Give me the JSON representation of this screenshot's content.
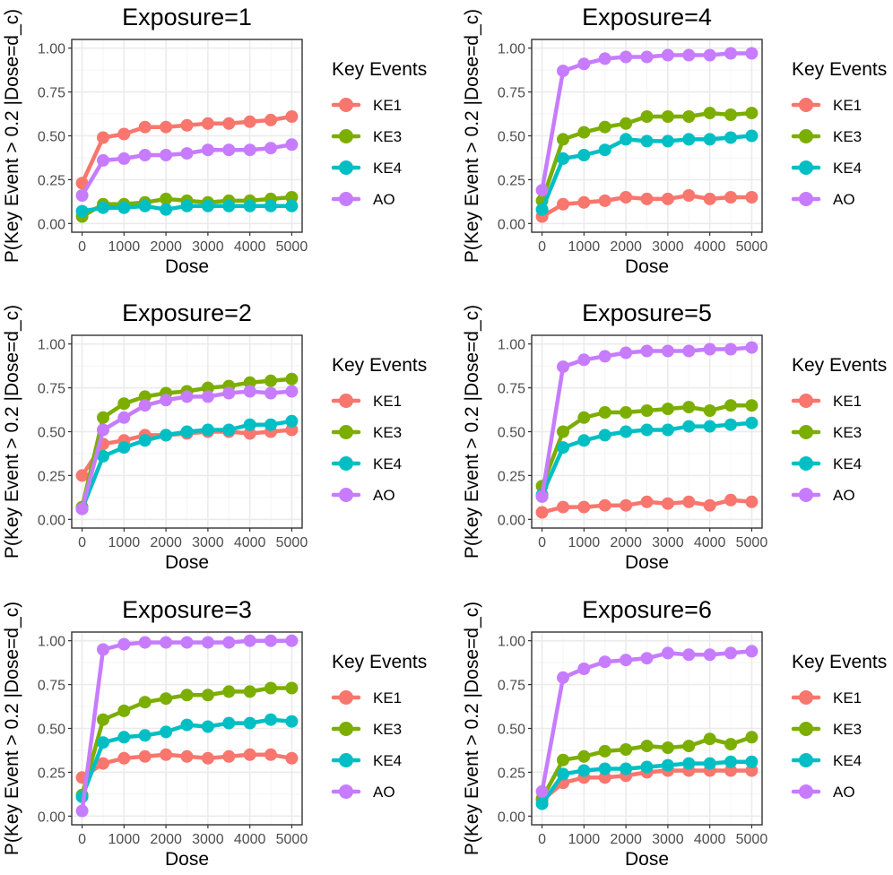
{
  "figure": {
    "ylabel": "P(Key Event > 0.2 |Dose=d_c)",
    "xlabel": "Dose",
    "legend_title": "Key Events",
    "legend_entries": [
      "KE1",
      "KE3",
      "KE4",
      "AO"
    ],
    "x_ticks": [
      "0",
      "1000",
      "2000",
      "3000",
      "4000",
      "5000"
    ],
    "y_ticks": [
      "0.00",
      "0.25",
      "0.50",
      "0.75",
      "1.00"
    ]
  },
  "colors": {
    "KE1": "#F8766D",
    "KE3": "#7CAE00",
    "KE4": "#00BFC4",
    "AO": "#C77CFF",
    "panel_bg": "#FFFFFF",
    "grid_major": "#EBEBEB",
    "grid_minor": "#F5F5F5",
    "border": "#333333"
  },
  "chart_data": [
    {
      "type": "line",
      "title": "Exposure=1",
      "xlabel": "Dose",
      "ylabel": "P(Key Event > 0.2 |Dose=d_c)",
      "xlim": [
        0,
        5000
      ],
      "ylim": [
        0,
        1
      ],
      "x": [
        0,
        500,
        1000,
        1500,
        2000,
        2500,
        3000,
        3500,
        4000,
        4500,
        5000
      ],
      "series": [
        {
          "name": "KE1",
          "values": [
            0.23,
            0.49,
            0.51,
            0.55,
            0.55,
            0.56,
            0.57,
            0.57,
            0.58,
            0.59,
            0.61
          ]
        },
        {
          "name": "KE3",
          "values": [
            0.04,
            0.11,
            0.11,
            0.12,
            0.14,
            0.13,
            0.12,
            0.13,
            0.13,
            0.14,
            0.15
          ]
        },
        {
          "name": "KE4",
          "values": [
            0.07,
            0.09,
            0.09,
            0.1,
            0.08,
            0.1,
            0.1,
            0.1,
            0.1,
            0.1,
            0.1
          ]
        },
        {
          "name": "AO",
          "values": [
            0.16,
            0.36,
            0.37,
            0.39,
            0.39,
            0.4,
            0.42,
            0.42,
            0.42,
            0.43,
            0.45
          ]
        }
      ]
    },
    {
      "type": "line",
      "title": "Exposure=4",
      "xlabel": "Dose",
      "ylabel": "P(Key Event > 0.2 |Dose=d_c)",
      "xlim": [
        0,
        5000
      ],
      "ylim": [
        0,
        1
      ],
      "x": [
        0,
        500,
        1000,
        1500,
        2000,
        2500,
        3000,
        3500,
        4000,
        4500,
        5000
      ],
      "series": [
        {
          "name": "KE1",
          "values": [
            0.04,
            0.11,
            0.12,
            0.13,
            0.15,
            0.14,
            0.14,
            0.16,
            0.14,
            0.15,
            0.15
          ]
        },
        {
          "name": "KE3",
          "values": [
            0.13,
            0.48,
            0.52,
            0.55,
            0.57,
            0.61,
            0.61,
            0.61,
            0.63,
            0.62,
            0.63
          ]
        },
        {
          "name": "KE4",
          "values": [
            0.08,
            0.37,
            0.39,
            0.42,
            0.48,
            0.47,
            0.47,
            0.48,
            0.48,
            0.49,
            0.5
          ]
        },
        {
          "name": "AO",
          "values": [
            0.19,
            0.87,
            0.91,
            0.94,
            0.95,
            0.95,
            0.96,
            0.96,
            0.96,
            0.97,
            0.97
          ]
        }
      ]
    },
    {
      "type": "line",
      "title": "Exposure=2",
      "xlabel": "Dose",
      "ylabel": "P(Key Event > 0.2 |Dose=d_c)",
      "xlim": [
        0,
        5000
      ],
      "ylim": [
        0,
        1
      ],
      "x": [
        0,
        500,
        1000,
        1500,
        2000,
        2500,
        3000,
        3500,
        4000,
        4500,
        5000
      ],
      "series": [
        {
          "name": "KE1",
          "values": [
            0.25,
            0.43,
            0.45,
            0.48,
            0.48,
            0.49,
            0.5,
            0.5,
            0.49,
            0.5,
            0.51
          ]
        },
        {
          "name": "KE3",
          "values": [
            0.07,
            0.58,
            0.66,
            0.7,
            0.72,
            0.73,
            0.75,
            0.76,
            0.78,
            0.79,
            0.8
          ]
        },
        {
          "name": "KE4",
          "values": [
            0.06,
            0.36,
            0.41,
            0.45,
            0.48,
            0.5,
            0.51,
            0.51,
            0.54,
            0.54,
            0.56
          ]
        },
        {
          "name": "AO",
          "values": [
            0.06,
            0.51,
            0.58,
            0.65,
            0.68,
            0.7,
            0.7,
            0.72,
            0.73,
            0.72,
            0.73
          ]
        }
      ]
    },
    {
      "type": "line",
      "title": "Exposure=5",
      "xlabel": "Dose",
      "ylabel": "P(Key Event > 0.2 |Dose=d_c)",
      "xlim": [
        0,
        5000
      ],
      "ylim": [
        0,
        1
      ],
      "x": [
        0,
        500,
        1000,
        1500,
        2000,
        2500,
        3000,
        3500,
        4000,
        4500,
        5000
      ],
      "series": [
        {
          "name": "KE1",
          "values": [
            0.04,
            0.07,
            0.07,
            0.08,
            0.08,
            0.1,
            0.09,
            0.1,
            0.08,
            0.11,
            0.1
          ]
        },
        {
          "name": "KE3",
          "values": [
            0.19,
            0.5,
            0.58,
            0.61,
            0.61,
            0.62,
            0.63,
            0.64,
            0.62,
            0.65,
            0.65
          ]
        },
        {
          "name": "KE4",
          "values": [
            0.14,
            0.41,
            0.45,
            0.48,
            0.5,
            0.51,
            0.51,
            0.53,
            0.53,
            0.54,
            0.55
          ]
        },
        {
          "name": "AO",
          "values": [
            0.13,
            0.87,
            0.91,
            0.93,
            0.95,
            0.96,
            0.96,
            0.96,
            0.97,
            0.97,
            0.98
          ]
        }
      ]
    },
    {
      "type": "line",
      "title": "Exposure=3",
      "xlabel": "Dose",
      "ylabel": "P(Key Event > 0.2 |Dose=d_c)",
      "xlim": [
        0,
        5000
      ],
      "ylim": [
        0,
        1
      ],
      "x": [
        0,
        500,
        1000,
        1500,
        2000,
        2500,
        3000,
        3500,
        4000,
        4500,
        5000
      ],
      "series": [
        {
          "name": "KE1",
          "values": [
            0.22,
            0.3,
            0.33,
            0.34,
            0.35,
            0.34,
            0.33,
            0.34,
            0.35,
            0.35,
            0.33
          ]
        },
        {
          "name": "KE3",
          "values": [
            0.12,
            0.55,
            0.6,
            0.65,
            0.67,
            0.69,
            0.69,
            0.71,
            0.71,
            0.73,
            0.73
          ]
        },
        {
          "name": "KE4",
          "values": [
            0.11,
            0.42,
            0.45,
            0.46,
            0.48,
            0.52,
            0.51,
            0.53,
            0.53,
            0.55,
            0.54
          ]
        },
        {
          "name": "AO",
          "values": [
            0.03,
            0.95,
            0.98,
            0.99,
            0.99,
            0.99,
            0.99,
            0.99,
            1.0,
            1.0,
            1.0
          ]
        }
      ]
    },
    {
      "type": "line",
      "title": "Exposure=6",
      "xlabel": "Dose",
      "ylabel": "P(Key Event > 0.2 |Dose=d_c)",
      "xlim": [
        0,
        5000
      ],
      "ylim": [
        0,
        1
      ],
      "x": [
        0,
        500,
        1000,
        1500,
        2000,
        2500,
        3000,
        3500,
        4000,
        4500,
        5000
      ],
      "series": [
        {
          "name": "KE1",
          "values": [
            0.09,
            0.19,
            0.22,
            0.22,
            0.23,
            0.25,
            0.26,
            0.26,
            0.26,
            0.26,
            0.26
          ]
        },
        {
          "name": "KE3",
          "values": [
            0.1,
            0.32,
            0.34,
            0.37,
            0.38,
            0.4,
            0.39,
            0.4,
            0.44,
            0.41,
            0.45
          ]
        },
        {
          "name": "KE4",
          "values": [
            0.07,
            0.24,
            0.26,
            0.27,
            0.27,
            0.28,
            0.29,
            0.3,
            0.3,
            0.31,
            0.31
          ]
        },
        {
          "name": "AO",
          "values": [
            0.14,
            0.79,
            0.84,
            0.88,
            0.89,
            0.9,
            0.93,
            0.92,
            0.92,
            0.93,
            0.94
          ]
        }
      ]
    }
  ]
}
